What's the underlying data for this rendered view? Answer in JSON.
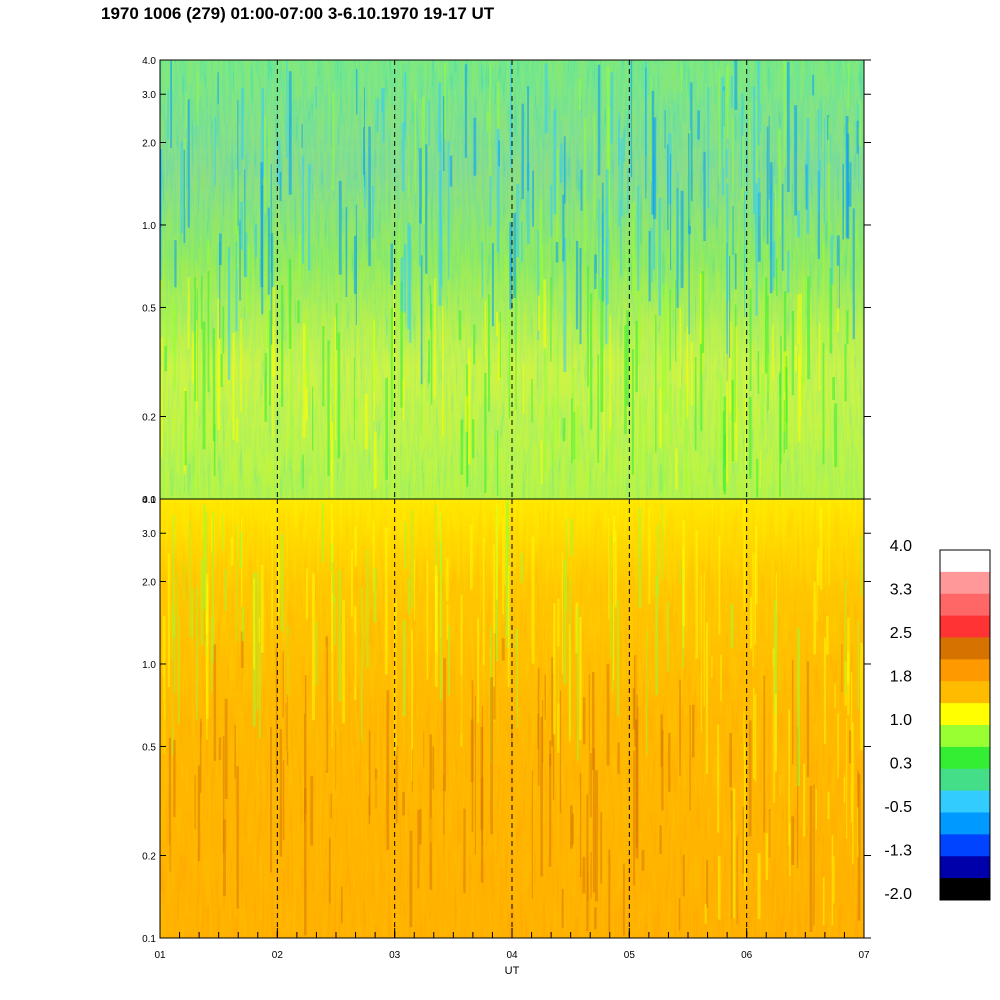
{
  "title": "1970 1006 (279) 01:00-07:00 3-6.10.1970  19-17 UT",
  "chart_data": [
    {
      "type": "heatmap",
      "panel": "top",
      "x": [
        "01",
        "02",
        "03",
        "04",
        "05",
        "06",
        "07"
      ],
      "xlim": [
        1,
        7
      ],
      "y_ticks": [
        {
          "value": 0.1,
          "label": "0.1"
        },
        {
          "value": 0.2,
          "label": "0.2"
        },
        {
          "value": 0.5,
          "label": "0.5"
        },
        {
          "value": 1.0,
          "label": "1.0"
        },
        {
          "value": 2.0,
          "label": "2.0"
        },
        {
          "value": 3.0,
          "label": "3.0"
        },
        {
          "value": 4.0,
          "label": "4.0"
        }
      ],
      "ylim": [
        0.1,
        4.0
      ],
      "y_scale": "log",
      "dashed_hours": [
        2,
        3,
        4,
        5,
        6
      ],
      "dominant_colors": [
        "green",
        "yellow",
        "blue"
      ]
    },
    {
      "type": "heatmap",
      "panel": "bottom",
      "x": [
        "01",
        "02",
        "03",
        "04",
        "05",
        "06",
        "07"
      ],
      "xlim": [
        1,
        7
      ],
      "xlabel": "UT",
      "y_ticks": [
        {
          "value": 0.1,
          "label": "0.1"
        },
        {
          "value": 0.2,
          "label": "0.2"
        },
        {
          "value": 0.5,
          "label": "0.5"
        },
        {
          "value": 1.0,
          "label": "1.0"
        },
        {
          "value": 2.0,
          "label": "2.0"
        },
        {
          "value": 3.0,
          "label": "3.0"
        },
        {
          "value": 4.0,
          "label": "4.0"
        }
      ],
      "ylim": [
        0.1,
        4.0
      ],
      "y_scale": "log",
      "dashed_hours": [
        2,
        3,
        4,
        5,
        6
      ],
      "dominant_colors": [
        "orange",
        "yellow",
        "dark-orange"
      ]
    }
  ],
  "colorbar": {
    "labels": [
      "4.0",
      "3.3",
      "2.5",
      "1.8",
      "1.0",
      "0.3",
      "-0.5",
      "-1.3",
      "-2.0"
    ],
    "colors": [
      "#ffffff",
      "#ff9999",
      "#ff6666",
      "#ff3333",
      "#d67300",
      "#ff9900",
      "#ffbb00",
      "#ffff00",
      "#99ff33",
      "#33ee33",
      "#44dd88",
      "#33ccff",
      "#0099ff",
      "#0044ff",
      "#0000aa",
      "#000000"
    ]
  }
}
